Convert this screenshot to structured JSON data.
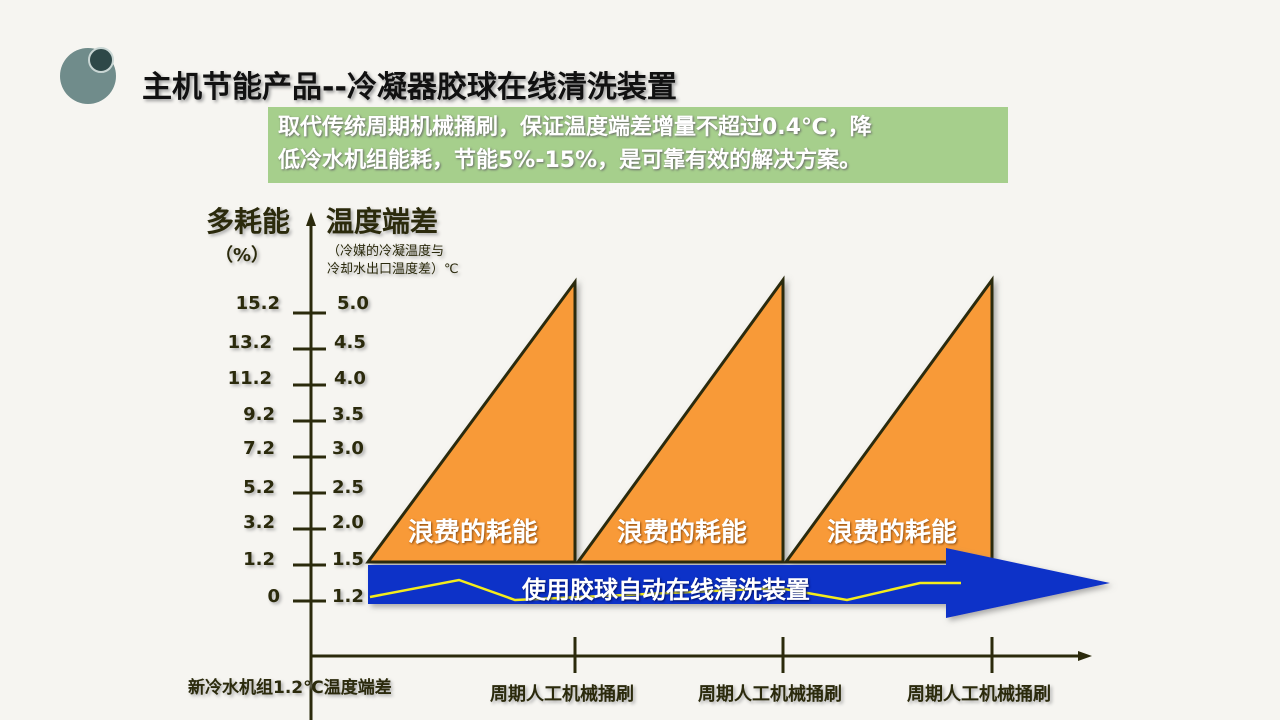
{
  "title": "主机节能产品--冷凝器胶球在线清洗装置",
  "note": {
    "line1": "取代传统周期机械捅刷，保证温度端差增量不超过0.4℃，降",
    "line2": "低冷水机组能耗，节能5%-15%，是可靠有效的解决方案。"
  },
  "y_axis_left": {
    "label": "多耗能",
    "unit": "（%）",
    "ticks": [
      "15.2",
      "13.2",
      "11.2",
      "9.2",
      "7.2",
      "5.2",
      "3.2",
      "1.2",
      "0"
    ]
  },
  "y_axis_right": {
    "label": "温度端差",
    "sub1": "（冷媒的冷凝温度与",
    "sub2": "冷却水出口温度差）℃",
    "ticks": [
      "5.0",
      "4.5",
      "4.0",
      "3.5",
      "3.0",
      "2.5",
      "2.0",
      "1.5",
      "1.2"
    ]
  },
  "x_axis": {
    "origin_label": "新冷水机组1.2℃温度端差",
    "cycle_labels": [
      "周期人工机械捅刷",
      "周期人工机械捅刷",
      "周期人工机械捅刷"
    ]
  },
  "waste_labels": [
    "浪费的耗能",
    "浪费的耗能",
    "浪费的耗能"
  ],
  "arrow_label": "使用胶球自动在线清洗装置",
  "colors": {
    "waste": "#f89a38",
    "arrow": "#0a33c8",
    "line": "#f4ec1c",
    "note_bg": "#a6cf8c",
    "axis": "#2b2a0c"
  }
}
